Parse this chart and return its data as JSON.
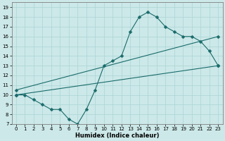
{
  "xlabel": "Humidex (Indice chaleur)",
  "background_color": "#cce8e8",
  "line_color": "#1a6b6b",
  "xlim": [
    -0.5,
    23.5
  ],
  "ylim": [
    7,
    19.5
  ],
  "xticks": [
    0,
    1,
    2,
    3,
    4,
    5,
    6,
    7,
    8,
    9,
    10,
    11,
    12,
    13,
    14,
    15,
    16,
    17,
    18,
    19,
    20,
    21,
    22,
    23
  ],
  "yticks": [
    7,
    8,
    9,
    10,
    11,
    12,
    13,
    14,
    15,
    16,
    17,
    18,
    19
  ],
  "line1_x": [
    0,
    1,
    2,
    3,
    4,
    5,
    6,
    7,
    8,
    9,
    10,
    11,
    12,
    13,
    14,
    15,
    16,
    17,
    18,
    19,
    20,
    21,
    22,
    23
  ],
  "line1_y": [
    10.0,
    10.0,
    9.5,
    9.0,
    8.5,
    8.5,
    7.5,
    7.0,
    8.5,
    10.5,
    13.0,
    13.5,
    14.0,
    16.5,
    18.0,
    18.5,
    18.0,
    17.0,
    16.5,
    16.0,
    16.0,
    15.5,
    14.5,
    13.0
  ],
  "line2_x": [
    0,
    23
  ],
  "line2_y": [
    10.0,
    13.0
  ],
  "line3_x": [
    0,
    23
  ],
  "line3_y": [
    10.5,
    16.0
  ],
  "grid_color": "#aad4d4",
  "markersize": 2.5,
  "tick_fontsize": 5.0,
  "xlabel_fontsize": 6.0
}
